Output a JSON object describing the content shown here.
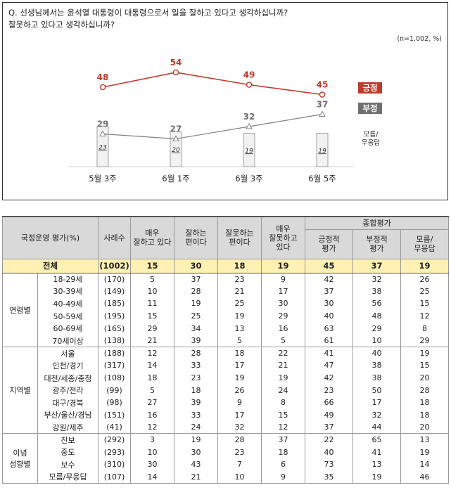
{
  "question": "Q. 선생님께서는 윤석열 대통령이 대통령으로서 일을 잘하고 있다고 생각하십니까?\n     잘못하고 있다고 생각하십니까?",
  "note": "(n=1,002, %)",
  "chart_data": {
    "type": "line",
    "categories": [
      "5월 3주",
      "6월 1주",
      "6월 3주",
      "6월 5주"
    ],
    "series": [
      {
        "name": "긍정",
        "values": [
          48,
          54,
          49,
          45
        ],
        "color": "#c0392b"
      },
      {
        "name": "부정",
        "values": [
          29,
          27,
          32,
          37
        ],
        "color": "#808080"
      }
    ],
    "bars": {
      "name": "모름/\n무응답",
      "values": [
        23,
        20,
        19,
        19
      ]
    },
    "legend": [
      "긍정",
      "부정",
      "모름/\n무응답"
    ],
    "legend_position": "right",
    "grid": false
  },
  "table": {
    "header": {
      "col0": "국정운영 평가(%)",
      "col1": "사례수",
      "col2": "매우\n잘하고 있다",
      "col3": "잘하는\n편이다",
      "col4": "잘못하는\n편이다",
      "col5": "매우\n잘못하고\n있다",
      "group": "종합평가",
      "col6": "긍정적\n평가",
      "col7": "부정적\n평가",
      "col8": "모름/\n무응답"
    },
    "total": {
      "label": "전체",
      "n": "(1002)",
      "values": [
        "15",
        "30",
        "18",
        "19",
        "45",
        "37",
        "19"
      ]
    },
    "groups": [
      {
        "name": "연령별",
        "rows": [
          {
            "label": "18-29세",
            "n": "(170)",
            "values": [
              "5",
              "37",
              "23",
              "9",
              "42",
              "32",
              "26"
            ]
          },
          {
            "label": "30-39세",
            "n": "(149)",
            "values": [
              "10",
              "28",
              "21",
              "17",
              "37",
              "38",
              "25"
            ]
          },
          {
            "label": "40-49세",
            "n": "(185)",
            "values": [
              "11",
              "19",
              "25",
              "30",
              "30",
              "56",
              "15"
            ]
          },
          {
            "label": "50-59세",
            "n": "(195)",
            "values": [
              "15",
              "25",
              "19",
              "29",
              "40",
              "48",
              "12"
            ]
          },
          {
            "label": "60-69세",
            "n": "(165)",
            "values": [
              "29",
              "34",
              "13",
              "16",
              "63",
              "29",
              "8"
            ]
          },
          {
            "label": "70세이상",
            "n": "(138)",
            "values": [
              "21",
              "39",
              "5",
              "5",
              "61",
              "10",
              "29"
            ]
          }
        ]
      },
      {
        "name": "지역별",
        "rows": [
          {
            "label": "서울",
            "n": "(188)",
            "values": [
              "12",
              "28",
              "18",
              "22",
              "41",
              "40",
              "19"
            ]
          },
          {
            "label": "인천/경기",
            "n": "(317)",
            "values": [
              "14",
              "33",
              "17",
              "21",
              "47",
              "38",
              "15"
            ]
          },
          {
            "label": "대전/세종/충청",
            "n": "(108)",
            "values": [
              "18",
              "23",
              "19",
              "19",
              "42",
              "38",
              "20"
            ]
          },
          {
            "label": "광주/전라",
            "n": "(99)",
            "values": [
              "5",
              "18",
              "26",
              "24",
              "23",
              "50",
              "28"
            ]
          },
          {
            "label": "대구/경북",
            "n": "(98)",
            "values": [
              "27",
              "39",
              "9",
              "8",
              "66",
              "17",
              "18"
            ]
          },
          {
            "label": "부산/울산/경남",
            "n": "(151)",
            "values": [
              "16",
              "33",
              "17",
              "15",
              "49",
              "32",
              "18"
            ]
          },
          {
            "label": "강원/제주",
            "n": "(41)",
            "values": [
              "12",
              "24",
              "32",
              "12",
              "37",
              "44",
              "20"
            ]
          }
        ]
      },
      {
        "name": "이념\n성향별",
        "rows": [
          {
            "label": "진보",
            "n": "(292)",
            "values": [
              "3",
              "19",
              "28",
              "37",
              "22",
              "65",
              "13"
            ]
          },
          {
            "label": "중도",
            "n": "(293)",
            "values": [
              "10",
              "30",
              "23",
              "18",
              "40",
              "41",
              "19"
            ]
          },
          {
            "label": "보수",
            "n": "(310)",
            "values": [
              "30",
              "43",
              "7",
              "6",
              "73",
              "13",
              "14"
            ]
          },
          {
            "label": "모름/무응답",
            "n": "(107)",
            "values": [
              "14",
              "21",
              "10",
              "9",
              "35",
              "19",
              "46"
            ]
          }
        ]
      }
    ]
  }
}
